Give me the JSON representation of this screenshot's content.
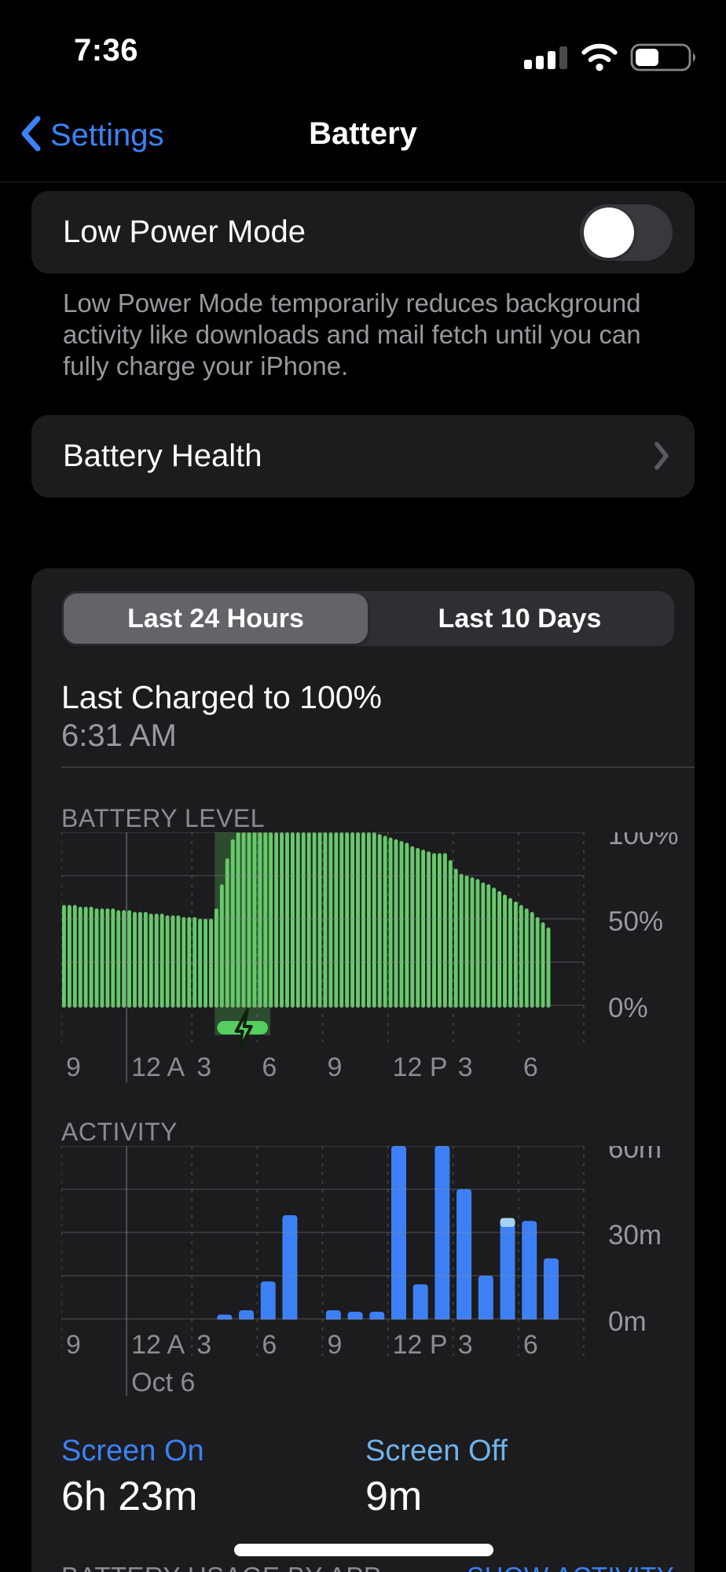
{
  "status_bar": {
    "time": "7:36"
  },
  "nav": {
    "back_label": "Settings",
    "title": "Battery"
  },
  "low_power_mode": {
    "label": "Low Power Mode",
    "state": "off",
    "footer": "Low Power Mode temporarily reduces background activity like downloads and mail fetch until you can fully charge your iPhone."
  },
  "battery_health": {
    "label": "Battery Health"
  },
  "tabs": {
    "options": [
      "Last 24 Hours",
      "Last 10 Days"
    ],
    "selected_index": 0
  },
  "last_charged": {
    "title": "Last Charged to 100%",
    "time": "6:31 AM"
  },
  "chart_data": [
    {
      "type": "bar",
      "title": "BATTERY LEVEL",
      "unit": "percent",
      "ylim": [
        0,
        100
      ],
      "y_tick_labels": [
        "100%",
        "50%",
        "0%"
      ],
      "x_tick_labels": [
        "9",
        "12 A",
        "3",
        "6",
        "9",
        "12 P",
        "3",
        "6"
      ],
      "x_window_hours": 24,
      "x_start": "9 PM",
      "bar_interval_minutes": 15,
      "bar_color": "#66c96b",
      "charging_band_color": "#2d4b2f",
      "charging_pill_color": "#55cf60",
      "charging_window_hours": [
        7.05,
        9.6
      ],
      "values": [
        58,
        58,
        58,
        57,
        57,
        57,
        56,
        56,
        56,
        56,
        55,
        55,
        55,
        54,
        54,
        54,
        53,
        53,
        53,
        52,
        52,
        52,
        51,
        51,
        51,
        50,
        50,
        50,
        56,
        70,
        85,
        96,
        100,
        100,
        100,
        100,
        100,
        100,
        100,
        100,
        100,
        100,
        100,
        100,
        100,
        100,
        100,
        100,
        100,
        100,
        100,
        100,
        100,
        100,
        100,
        100,
        100,
        100,
        99,
        98,
        97,
        96,
        95,
        94,
        92,
        91,
        90,
        89,
        88,
        88,
        88,
        84,
        79,
        76,
        75,
        74,
        73,
        71,
        70,
        68,
        66,
        64,
        62,
        60,
        58,
        56,
        54,
        51,
        48,
        45
      ]
    },
    {
      "type": "bar",
      "title": "ACTIVITY",
      "unit": "minutes",
      "ylim": [
        0,
        60
      ],
      "y_tick_labels": [
        "60m",
        "30m",
        "0m"
      ],
      "x_tick_labels": [
        "9",
        "12 A",
        "3",
        "6",
        "9",
        "12 P",
        "3",
        "6"
      ],
      "x_sub_label": "Oct 6",
      "x_window_hours": 24,
      "x_start": "9 PM",
      "bar_interval_minutes": 60,
      "bar_color": "#3d80f5",
      "cap_color": "#a6d3f3",
      "light_caps": [
        {
          "index": 20,
          "value": 2
        }
      ],
      "values": [
        0,
        0,
        0,
        0,
        0,
        0,
        0,
        1.5,
        3,
        13,
        36,
        0,
        3,
        2.5,
        2.5,
        60,
        12,
        60,
        45,
        15,
        33,
        34,
        21,
        0
      ]
    }
  ],
  "screen_stats": [
    {
      "label": "Screen On",
      "value": "6h 23m"
    },
    {
      "label": "Screen Off",
      "value": "9m"
    }
  ],
  "battery_usage": {
    "header": "BATTERY USAGE BY APP",
    "action": "SHOW ACTIVITY"
  },
  "colors": {
    "accent_blue": "#3c82f7",
    "screen_off_blue": "#70b3ea",
    "card_background": "#1c1c1e",
    "battery_green": "#66c96b",
    "activity_blue": "#3d80f5"
  }
}
